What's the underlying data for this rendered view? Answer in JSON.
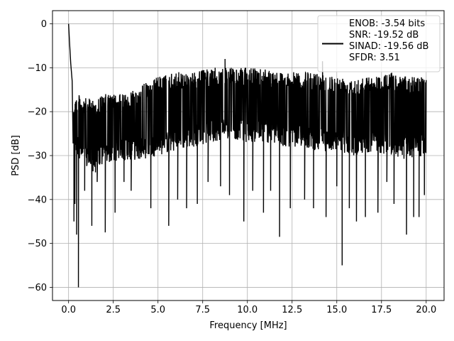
{
  "chart_data": {
    "type": "line",
    "xlabel": "Frequency [MHz]",
    "ylabel": "PSD [dB]",
    "xlim": [
      -0.9,
      21.0
    ],
    "ylim": [
      -63,
      3
    ],
    "xticks": [
      0.0,
      2.5,
      5.0,
      7.5,
      10.0,
      12.5,
      15.0,
      17.5,
      20.0
    ],
    "xtick_labels": [
      "0.0",
      "2.5",
      "5.0",
      "7.5",
      "10.0",
      "12.5",
      "15.0",
      "17.5",
      "20.0"
    ],
    "yticks": [
      0,
      -10,
      -20,
      -30,
      -40,
      -50,
      -60
    ],
    "ytick_labels": [
      "0",
      "−10",
      "−20",
      "−30",
      "−40",
      "−50",
      "−60"
    ],
    "grid": true,
    "legend_position": "top-right",
    "series": [
      {
        "name": "ENOB: -3.54 bits\nSNR: -19.52 dB\nSINAD: -19.56 dB\nSFDR: 3.51",
        "color": "#000000",
        "noise_band": [
          [
            0.1,
            -17,
            -28
          ],
          [
            0.5,
            -16,
            -30
          ],
          [
            1.0,
            -17,
            -33
          ],
          [
            1.5,
            -17,
            -34
          ],
          [
            2.0,
            -16,
            -32
          ],
          [
            3.0,
            -16,
            -31
          ],
          [
            4.0,
            -14,
            -31
          ],
          [
            5.0,
            -12,
            -30
          ],
          [
            6.0,
            -11,
            -29
          ],
          [
            7.0,
            -11,
            -28
          ],
          [
            8.0,
            -10,
            -27
          ],
          [
            9.0,
            -10,
            -26
          ],
          [
            10.0,
            -10,
            -27
          ],
          [
            11.0,
            -10,
            -27
          ],
          [
            12.0,
            -11,
            -28
          ],
          [
            13.0,
            -11,
            -28
          ],
          [
            14.0,
            -11,
            -29
          ],
          [
            15.0,
            -12,
            -29
          ],
          [
            16.0,
            -12,
            -30
          ],
          [
            17.0,
            -12,
            -29
          ],
          [
            18.0,
            -11,
            -30
          ],
          [
            19.0,
            -12,
            -31
          ],
          [
            20.0,
            -12,
            -30
          ]
        ],
        "dips": [
          [
            0.15,
            -30
          ],
          [
            0.3,
            -45
          ],
          [
            0.35,
            -41
          ],
          [
            0.45,
            -48
          ],
          [
            0.55,
            -60
          ],
          [
            0.9,
            -38
          ],
          [
            1.3,
            -46
          ],
          [
            1.6,
            -36
          ],
          [
            2.05,
            -47.5
          ],
          [
            2.6,
            -43
          ],
          [
            3.1,
            -36
          ],
          [
            3.5,
            -38
          ],
          [
            4.6,
            -42
          ],
          [
            5.6,
            -46
          ],
          [
            6.1,
            -40
          ],
          [
            6.6,
            -42
          ],
          [
            7.2,
            -41
          ],
          [
            7.8,
            -36
          ],
          [
            8.5,
            -37
          ],
          [
            9.0,
            -39
          ],
          [
            9.8,
            -45
          ],
          [
            10.3,
            -38
          ],
          [
            10.9,
            -43
          ],
          [
            11.3,
            -38
          ],
          [
            11.8,
            -48.5
          ],
          [
            12.4,
            -42
          ],
          [
            13.2,
            -40
          ],
          [
            13.7,
            -42
          ],
          [
            14.4,
            -44
          ],
          [
            15.0,
            -37
          ],
          [
            15.3,
            -55
          ],
          [
            15.7,
            -42
          ],
          [
            16.1,
            -45
          ],
          [
            16.6,
            -44
          ],
          [
            17.3,
            -43
          ],
          [
            17.8,
            -36
          ],
          [
            18.2,
            -41
          ],
          [
            18.9,
            -48
          ],
          [
            19.3,
            -44
          ],
          [
            19.6,
            -44
          ],
          [
            19.9,
            -39
          ]
        ],
        "peaks": [
          [
            0.0,
            0
          ],
          [
            0.05,
            -4
          ],
          [
            0.12,
            -9
          ],
          [
            0.2,
            -13
          ],
          [
            8.75,
            -8
          ],
          [
            14.2,
            -8.5
          ]
        ]
      }
    ]
  }
}
